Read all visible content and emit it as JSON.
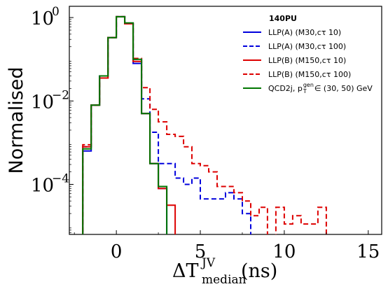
{
  "chart_data": {
    "type": "line",
    "ylabel": "Normalised",
    "xlabel_main": "ΔT",
    "xlabel_sup": "JV",
    "xlabel_sub": "median",
    "xlabel_unit": "(ns)",
    "xlim": [
      -2.8,
      15.8
    ],
    "ylim_log10": [
      -5.2,
      0.27
    ],
    "xticks": [
      0,
      5,
      10,
      15
    ],
    "yticks_log10": [
      0,
      -2,
      -4
    ],
    "ytick_base": "10",
    "ytick_exps": [
      "0",
      "−2",
      "−4"
    ],
    "scale_y": "log",
    "grid": false,
    "legend_placement": "top-right",
    "legend_title": "140PU",
    "bin_edges": [
      -2.0,
      -1.5,
      -1.0,
      -0.5,
      0.0,
      0.5,
      1.0,
      1.5,
      2.0,
      2.5,
      3.0,
      3.5,
      4.0,
      4.5,
      5.0,
      5.5,
      6.0,
      6.5,
      7.0,
      7.5,
      8.0,
      8.5,
      9.0,
      9.5,
      10.0,
      10.5,
      11.0,
      11.5,
      12.0,
      12.5
    ],
    "series": [
      {
        "name": "LLP(A) (M30,cτ 10)",
        "color": "#0000dd",
        "dash": "solid",
        "log10_values": [
          -3.2,
          -2.1,
          -1.4,
          -0.48,
          0.02,
          -0.15,
          -1.1,
          -2.3,
          -3.5,
          -4.1,
          -5.3,
          -5.3,
          -5.3,
          -5.3,
          -5.3,
          -5.3,
          -5.3,
          -5.3,
          -5.3,
          -5.3,
          -5.3,
          -5.3,
          -5.3,
          -5.3,
          -5.3,
          -5.3,
          -5.3,
          -5.3,
          -5.3
        ]
      },
      {
        "name": "LLP(A) (M30,cτ 100)",
        "color": "#0000dd",
        "dash": "dashed",
        "log10_values": [
          -3.1,
          -2.1,
          -1.4,
          -0.48,
          0.02,
          -0.14,
          -1.0,
          -1.95,
          -2.75,
          -3.5,
          -3.5,
          -3.85,
          -4.0,
          -3.85,
          -4.35,
          -4.35,
          -4.35,
          -4.2,
          -4.35,
          -4.7,
          -5.3,
          -5.3,
          -5.3,
          -5.3,
          -5.3,
          -5.3,
          -5.3,
          -5.3,
          -5.3
        ]
      },
      {
        "name": "LLP(B) (M150,cτ 10)",
        "color": "#dd0000",
        "dash": "solid",
        "log10_values": [
          -3.1,
          -2.1,
          -1.45,
          -0.48,
          0.02,
          -0.15,
          -1.05,
          -2.3,
          -3.5,
          -4.1,
          -4.5,
          -5.3,
          -5.3,
          -5.3,
          -5.3,
          -5.3,
          -5.3,
          -5.3,
          -5.3,
          -5.3,
          -5.3,
          -5.3,
          -5.3,
          -5.3,
          -5.3,
          -5.3,
          -5.3,
          -5.3,
          -5.3
        ]
      },
      {
        "name": "LLP(B) (M150,cτ 100)",
        "color": "#dd0000",
        "dash": "dashed",
        "log10_values": [
          -3.05,
          -2.1,
          -1.45,
          -0.48,
          0.02,
          -0.14,
          -0.98,
          -1.68,
          -2.2,
          -2.5,
          -2.8,
          -2.85,
          -3.1,
          -3.5,
          -3.55,
          -3.7,
          -4.05,
          -4.05,
          -4.2,
          -4.4,
          -4.75,
          -4.55,
          -5.3,
          -4.55,
          -4.95,
          -4.75,
          -4.95,
          -4.95,
          -4.55
        ]
      },
      {
        "name": "QCD2j, p_T^gen ∈ (30, 50) GeV",
        "color": "#007700",
        "dash": "solid",
        "log10_values": [
          -3.15,
          -2.1,
          -1.4,
          -0.48,
          0.02,
          -0.13,
          -1.0,
          -2.3,
          -3.5,
          -4.05,
          -5.3,
          -5.3,
          -5.3,
          -5.3,
          -5.3,
          -5.3,
          -5.3,
          -5.3,
          -5.3,
          -5.3,
          -5.3,
          -5.3,
          -5.3,
          -5.3,
          -5.3,
          -5.3,
          -5.3,
          -5.3,
          -5.3
        ]
      }
    ],
    "legend_labels": [
      "LLP(A) (M30,cτ 10)",
      "LLP(A) (M30,cτ 100)",
      "LLP(B) (M150,cτ 10)",
      "LLP(B) (M150,cτ 100)",
      "QCD2j, p"
    ],
    "legend_qcd_sup": "gen",
    "legend_qcd_sub": "T",
    "legend_qcd_tail": "∈ (30, 50) GeV"
  }
}
